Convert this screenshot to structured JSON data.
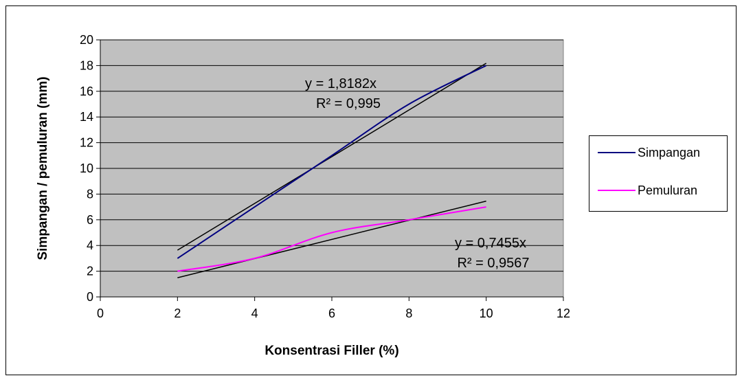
{
  "chart_data": {
    "type": "line",
    "title": "",
    "xlabel": "Konsentrasi Filler (%)",
    "ylabel": "Simpangan / pemuluran (mm)",
    "xlim": [
      0,
      12
    ],
    "ylim": [
      0,
      20
    ],
    "x_ticks": [
      "0",
      "2",
      "4",
      "6",
      "8",
      "10",
      "12"
    ],
    "y_ticks": [
      "0",
      "2",
      "4",
      "6",
      "8",
      "10",
      "12",
      "14",
      "16",
      "18",
      "20"
    ],
    "grid": "horizontal",
    "legend_position": "right",
    "plot_background": "#c0c0c0",
    "series": [
      {
        "name": "Simpangan",
        "color": "#000080",
        "x": [
          2,
          4,
          6,
          8,
          10
        ],
        "y": [
          3,
          7,
          11,
          15,
          18
        ],
        "trendline": {
          "slope": 1.8182,
          "color": "#000000",
          "equation": "y = 1,8182x",
          "r2": "R² = 0,995"
        }
      },
      {
        "name": "Pemuluran",
        "color": "#ff00ff",
        "x": [
          2,
          4,
          6,
          8,
          10
        ],
        "y": [
          2,
          3,
          5,
          6,
          7
        ],
        "trendline": {
          "slope": 0.7455,
          "color": "#000000",
          "equation": "y = 0,7455x",
          "r2": "R² = 0,9567"
        }
      }
    ]
  }
}
